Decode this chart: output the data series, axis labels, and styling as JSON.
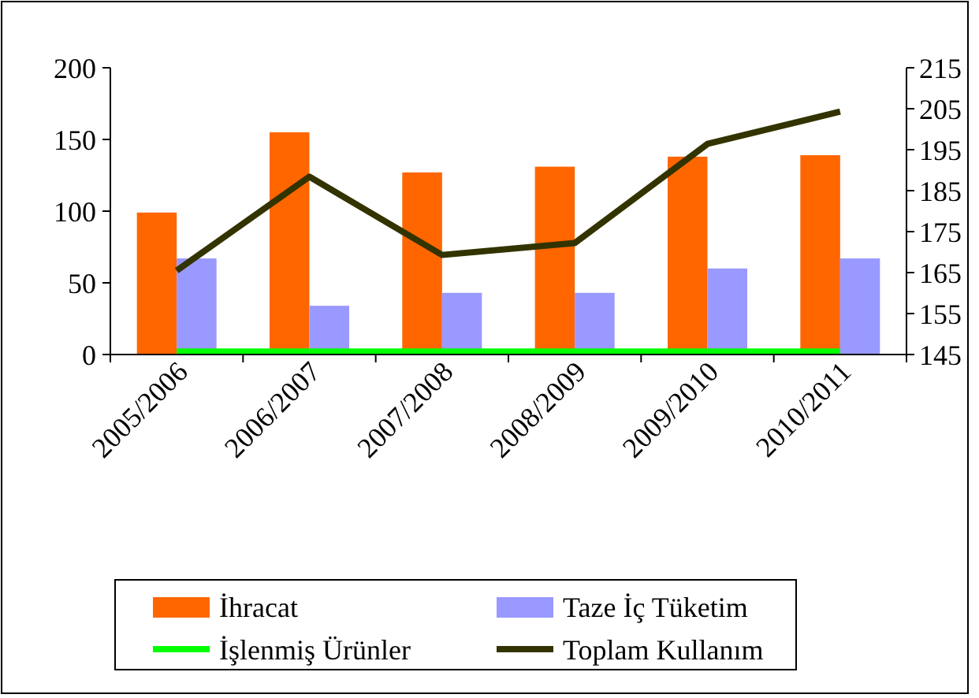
{
  "chart_data": {
    "type": "bar",
    "categories": [
      "2005/2006",
      "2006/2007",
      "2007/2008",
      "2008/2009",
      "2009/2010",
      "2010/2011"
    ],
    "series": [
      {
        "name": "İhracat",
        "color": "#ff6600",
        "values": [
          99,
          155,
          127,
          131,
          138,
          139
        ]
      },
      {
        "name": "Taze İç Tüketim",
        "color": "#9999ff",
        "values": [
          67,
          34,
          43,
          43,
          60,
          67
        ]
      },
      {
        "name": "İşlenmiş Ürünler",
        "type": "line",
        "color": "#00ff00",
        "values": [
          2,
          2,
          2,
          2,
          2,
          2
        ]
      },
      {
        "name": "Toplam Kullanım",
        "type": "line",
        "axis": "y2",
        "color": "#333300",
        "values": [
          165.5,
          188.4,
          169.3,
          172.2,
          196.4,
          204.3
        ]
      }
    ],
    "ylim": [
      0,
      200
    ],
    "yticks": [
      0,
      50,
      100,
      150,
      200
    ],
    "y2lim": [
      145,
      215
    ],
    "y2ticks": [
      145,
      155,
      165,
      175,
      185,
      195,
      205,
      215
    ],
    "grid": false,
    "legend": "bottom",
    "marker": "none"
  }
}
